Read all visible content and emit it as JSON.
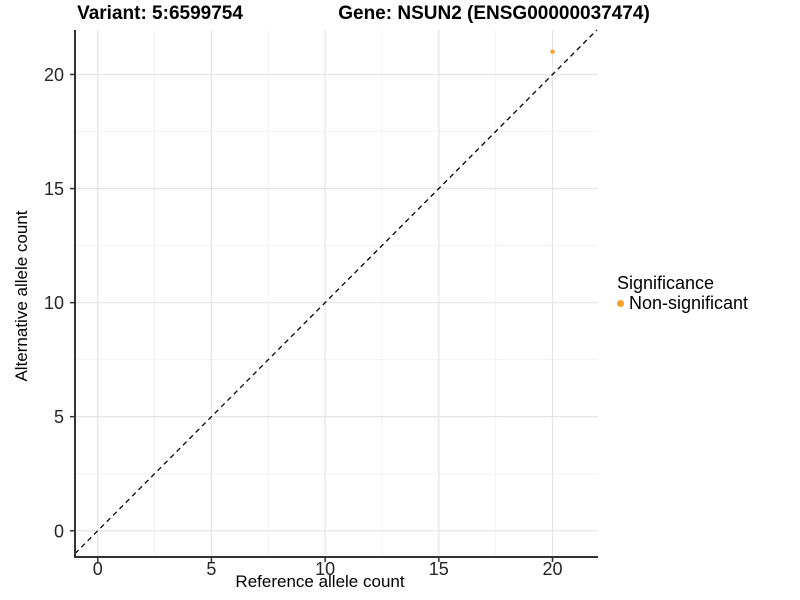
{
  "chart_data": {
    "type": "scatter",
    "title_left": "Variant: 5:6599754",
    "title_right": "Gene: NSUN2 (ENSG00000037474)",
    "xlabel": "Reference allele count",
    "ylabel": "Alternative allele count",
    "xlim": [
      -1.0,
      22.0
    ],
    "ylim": [
      -1.15,
      21.95
    ],
    "x_ticks": [
      0,
      5,
      10,
      15,
      20
    ],
    "y_ticks": [
      0,
      5,
      10,
      15,
      20
    ],
    "x_minor_ticks": [
      2.5,
      7.5,
      12.5,
      17.5
    ],
    "y_minor_ticks": [
      2.5,
      7.5,
      12.5,
      17.5
    ],
    "grid": "major and minor gridlines on white panel",
    "points": [
      {
        "x": 20,
        "y": 21,
        "series": "Non-significant"
      }
    ],
    "reference_line": {
      "kind": "identity y=x",
      "style": "dashed",
      "color": "#000000"
    },
    "legend": {
      "position": "right",
      "title": "Significance",
      "entries": [
        {
          "label": "Non-significant",
          "color": "#F8A02E",
          "marker": "circle"
        }
      ]
    },
    "colors": {
      "point": "#F8A02E",
      "grid_major": "#E6E6E6",
      "grid_minor": "#F2F2F2",
      "axis_line": "#333333",
      "tick_mark": "#333333",
      "tick_label": "#262626"
    }
  }
}
